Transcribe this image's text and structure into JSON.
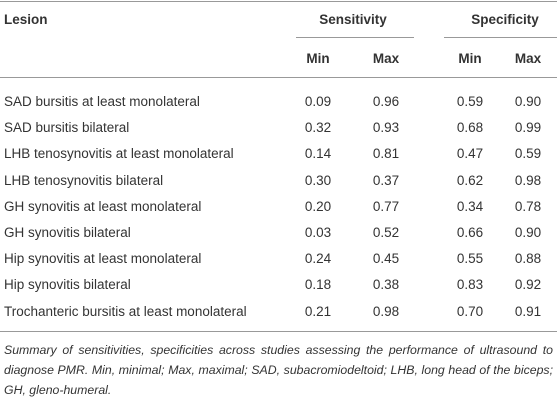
{
  "table": {
    "header": {
      "lesion": "Lesion",
      "groups": [
        "Sensitivity",
        "Specificity"
      ],
      "subheaders": [
        "Min",
        "Max",
        "Min",
        "Max"
      ]
    },
    "rows": [
      [
        "SAD bursitis at least monolateral",
        "0.09",
        "0.96",
        "0.59",
        "0.90"
      ],
      [
        "SAD bursitis bilateral",
        "0.32",
        "0.93",
        "0.68",
        "0.99"
      ],
      [
        "LHB tenosynovitis at least monolateral",
        "0.14",
        "0.81",
        "0.47",
        "0.59"
      ],
      [
        "LHB tenosynovitis bilateral",
        "0.30",
        "0.37",
        "0.62",
        "0.98"
      ],
      [
        "GH synovitis at least monolateral",
        "0.20",
        "0.77",
        "0.34",
        "0.78"
      ],
      [
        "GH synovitis bilateral",
        "0.03",
        "0.52",
        "0.66",
        "0.90"
      ],
      [
        "Hip synovitis at least monolateral",
        "0.24",
        "0.45",
        "0.55",
        "0.88"
      ],
      [
        "Hip synovitis bilateral",
        "0.18",
        "0.38",
        "0.83",
        "0.92"
      ],
      [
        "Trochanteric bursitis at least monolateral",
        "0.21",
        "0.98",
        "0.70",
        "0.91"
      ]
    ],
    "caption": "Summary of sensitivities, specificities across studies assessing the performance of ultrasound to diagnose PMR. Min, minimal; Max, maximal; SAD, subacromiodeltoid; LHB, long head of the biceps; GH, gleno-humeral."
  }
}
